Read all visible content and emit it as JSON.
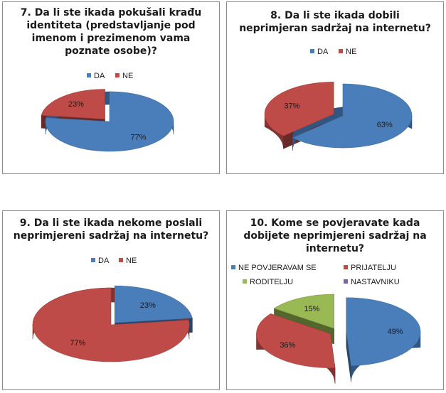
{
  "colors": {
    "da": "#4a7ebb",
    "ne": "#be4b48",
    "roditelju": "#98b954",
    "nastavniku": "#7d60a0"
  },
  "chart_data": [
    {
      "type": "pie",
      "title": "7. Da li ste ikada pokušali krađu identiteta (predstavljanje pod imenom i prezimenom vama poznate osobe)?",
      "title_lines": [
        "7. Da li ste ikada pokušali krađu",
        "identiteta (predstavljanje pod",
        "imenom i prezimenom vama",
        "poznate osobe)?"
      ],
      "categories": [
        "DA",
        "NE"
      ],
      "values": [
        77,
        23
      ],
      "data_labels": [
        "77%",
        "23%"
      ],
      "exploded": [
        false,
        true
      ],
      "legend_position": "top"
    },
    {
      "type": "pie",
      "title": "8. Da li ste ikada dobili neprimjeran sadržaj na internetu?",
      "title_lines": [
        "8. Da li ste ikada dobili",
        "neprimjeran sadržaj na internetu?"
      ],
      "categories": [
        "DA",
        "NE"
      ],
      "values": [
        63,
        37
      ],
      "data_labels": [
        "63%",
        "37%"
      ],
      "exploded": [
        false,
        true
      ],
      "legend_position": "top"
    },
    {
      "type": "pie",
      "title": "9. Da li ste ikada nekome poslali neprimjereni sadržaj na internetu?",
      "title_lines": [
        "9. Da li ste ikada nekome poslali",
        "neprimjereni sadržaj na internetu?"
      ],
      "categories": [
        "DA",
        "NE"
      ],
      "values": [
        23,
        77
      ],
      "data_labels": [
        "23%",
        "77%"
      ],
      "exploded": [
        true,
        false
      ],
      "legend_position": "top"
    },
    {
      "type": "pie",
      "title": "10. Kome se povjeravate kada dobijete neprimjereni sadržaj na internetu?",
      "title_lines": [
        "10. Kome se povjeravate kada",
        "dobijete neprimjereni sadržaj na",
        "internetu?"
      ],
      "categories": [
        "NE POVJERAVAM SE",
        "PRIJATELJU",
        "RODITELJU",
        "NASTAVNIKU"
      ],
      "values": [
        49,
        36,
        15,
        0
      ],
      "data_labels": [
        "49%",
        "36%",
        "15%",
        ""
      ],
      "exploded": [
        true,
        true,
        true,
        false
      ],
      "legend_position": "top"
    }
  ]
}
